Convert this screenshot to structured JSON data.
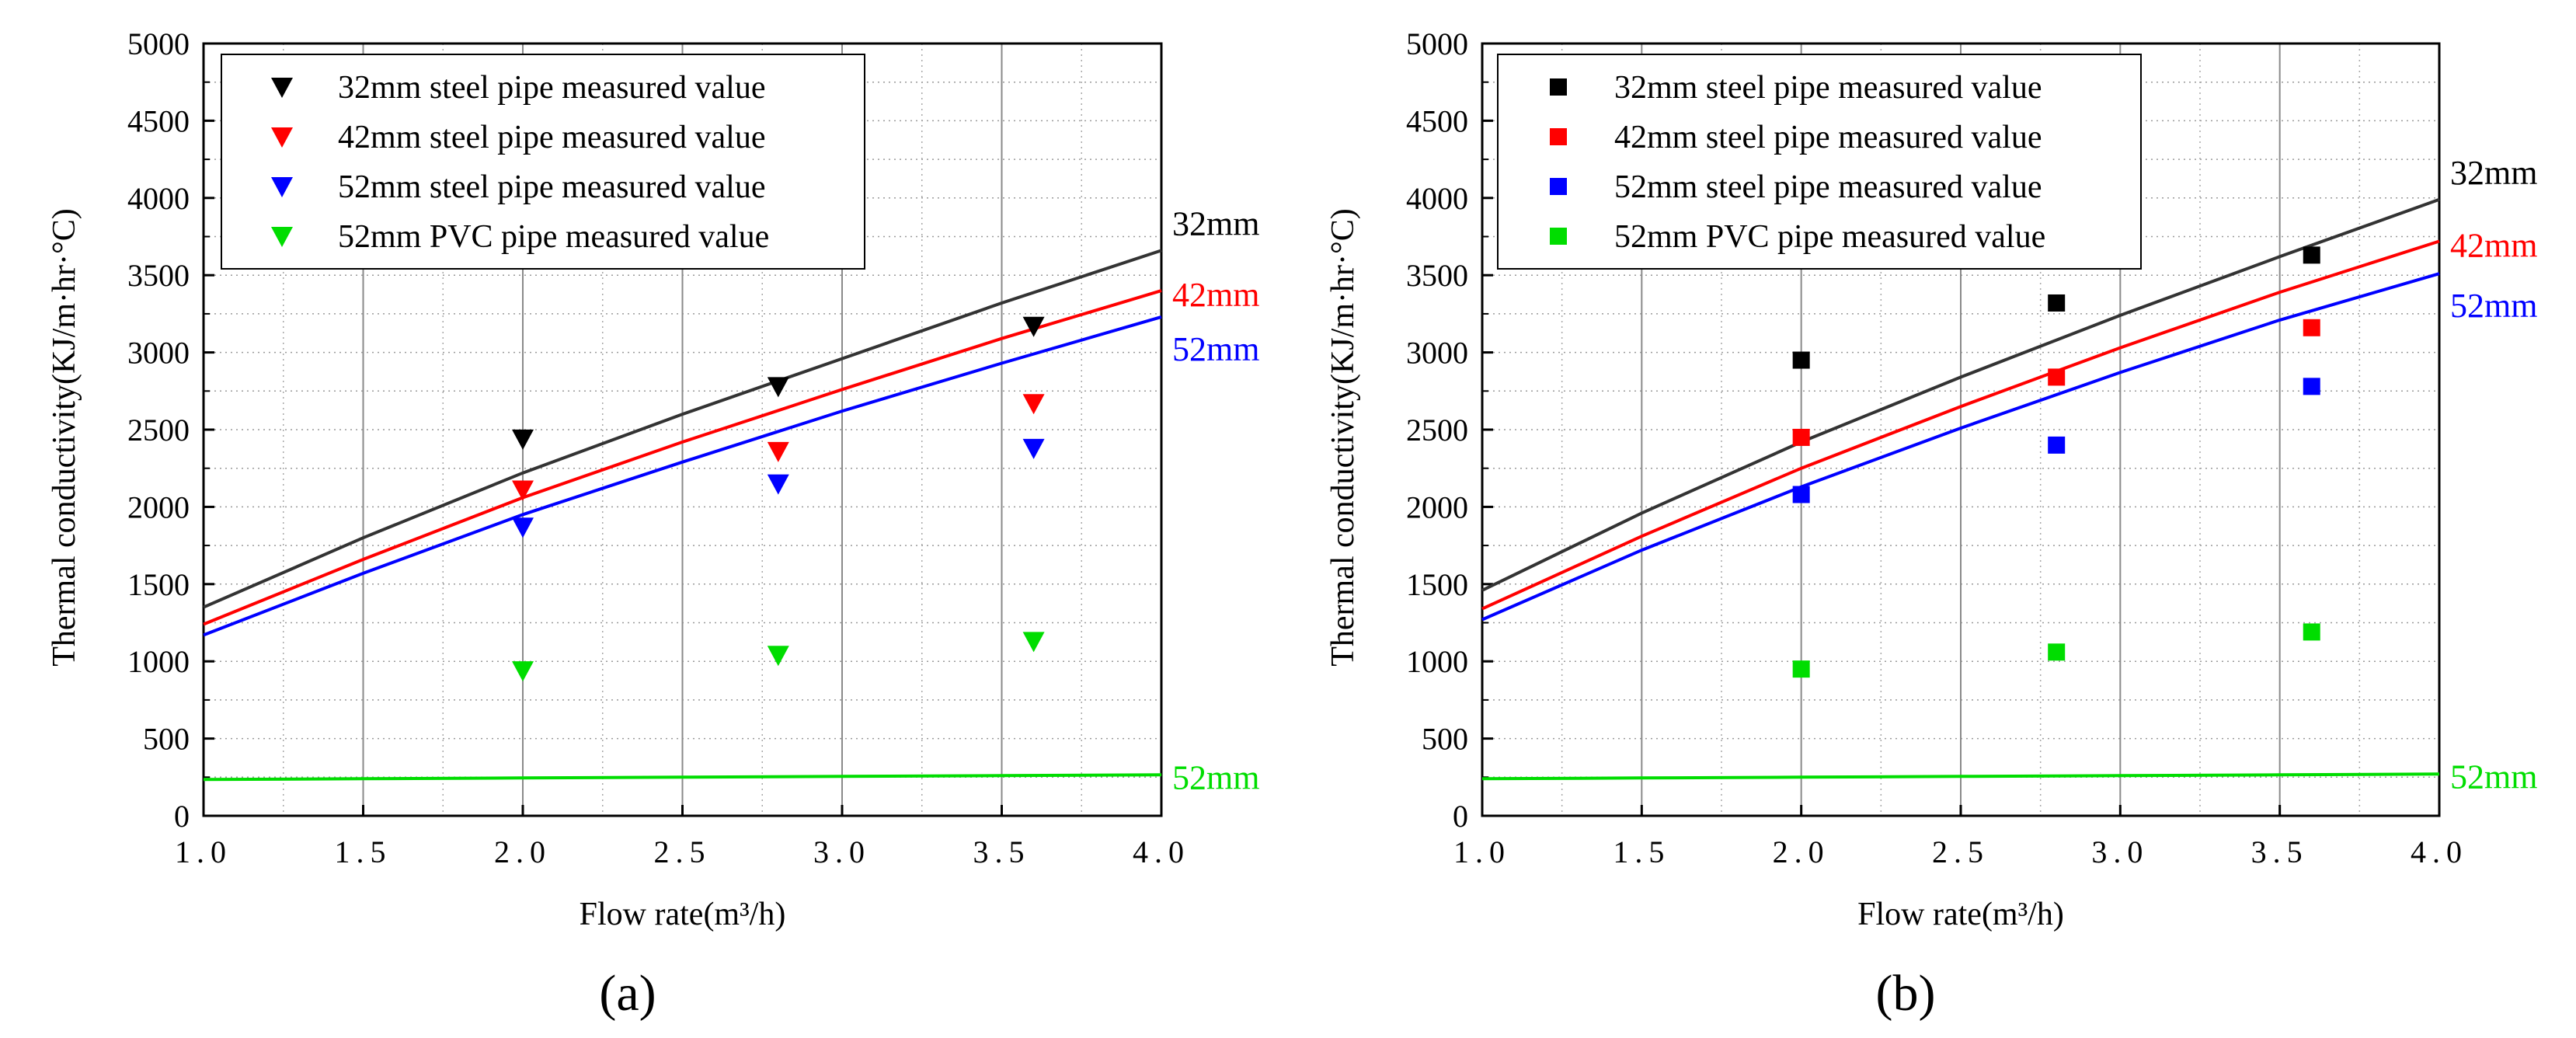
{
  "chart_data": [
    {
      "type": "line",
      "panel_label": "(a)",
      "xlabel": "Flow rate(m³/h)",
      "ylabel": "Thermal conductivity(KJ/m·hr·°C)",
      "xlim": [
        1.0,
        4.0
      ],
      "ylim": [
        0,
        5000
      ],
      "x_ticks": [
        "1.0",
        "1.5",
        "2.0",
        "2.5",
        "3.0",
        "3.5",
        "4.0"
      ],
      "y_ticks": [
        "0",
        "500",
        "1000",
        "1500",
        "2000",
        "2500",
        "3000",
        "3500",
        "4000",
        "4500",
        "5000"
      ],
      "grid": true,
      "legend_position": "top-left",
      "marker": "triangle-down",
      "curves": [
        {
          "label": "32mm",
          "color": "#333333",
          "x": [
            1.0,
            1.5,
            2.0,
            2.5,
            3.0,
            3.5,
            4.0
          ],
          "y": [
            1350,
            1800,
            2220,
            2600,
            2960,
            3320,
            3660
          ]
        },
        {
          "label": "42mm",
          "color": "#ff0000",
          "x": [
            1.0,
            1.5,
            2.0,
            2.5,
            3.0,
            3.5,
            4.0
          ],
          "y": [
            1240,
            1660,
            2060,
            2420,
            2760,
            3090,
            3400
          ]
        },
        {
          "label": "52mm",
          "color": "#0000ff",
          "x": [
            1.0,
            1.5,
            2.0,
            2.5,
            3.0,
            3.5,
            4.0
          ],
          "y": [
            1170,
            1570,
            1950,
            2290,
            2620,
            2930,
            3230
          ]
        },
        {
          "label": "52mm",
          "color": "#00dd00",
          "x": [
            1.0,
            1.5,
            2.0,
            2.5,
            3.0,
            3.5,
            4.0
          ],
          "y": [
            235,
            240,
            245,
            250,
            255,
            260,
            265
          ]
        }
      ],
      "series": [
        {
          "name": "32mm steel pipe measured value",
          "color": "#000000",
          "x": [
            2.0,
            2.8,
            3.6
          ],
          "values": [
            2440,
            2780,
            3170
          ]
        },
        {
          "name": "42mm steel pipe measured value",
          "color": "#ff0000",
          "x": [
            2.0,
            2.8,
            3.6
          ],
          "values": [
            2110,
            2360,
            2670
          ]
        },
        {
          "name": "52mm steel pipe measured value",
          "color": "#0000ff",
          "x": [
            2.0,
            2.8,
            3.6
          ],
          "values": [
            1870,
            2150,
            2380
          ]
        },
        {
          "name": "52mm PVC pipe measured value",
          "color": "#00dd00",
          "x": [
            2.0,
            2.8,
            3.6
          ],
          "values": [
            940,
            1040,
            1130
          ]
        }
      ]
    },
    {
      "type": "line",
      "panel_label": "(b)",
      "xlabel": "Flow rate(m³/h)",
      "ylabel": "Thermal conductivity(KJ/m·hr·°C)",
      "xlim": [
        1.0,
        4.0
      ],
      "ylim": [
        0,
        5000
      ],
      "x_ticks": [
        "1.0",
        "1.5",
        "2.0",
        "2.5",
        "3.0",
        "3.5",
        "4.0"
      ],
      "y_ticks": [
        "0",
        "500",
        "1000",
        "1500",
        "2000",
        "2500",
        "3000",
        "3500",
        "4000",
        "4500",
        "5000"
      ],
      "grid": true,
      "legend_position": "top-left",
      "marker": "square",
      "curves": [
        {
          "label": "32mm",
          "color": "#333333",
          "x": [
            1.0,
            1.5,
            2.0,
            2.5,
            3.0,
            3.5,
            4.0
          ],
          "y": [
            1460,
            1960,
            2420,
            2840,
            3240,
            3620,
            3990
          ]
        },
        {
          "label": "42mm",
          "color": "#ff0000",
          "x": [
            1.0,
            1.5,
            2.0,
            2.5,
            3.0,
            3.5,
            4.0
          ],
          "y": [
            1340,
            1810,
            2250,
            2650,
            3030,
            3390,
            3720
          ]
        },
        {
          "label": "52mm",
          "color": "#0000ff",
          "x": [
            1.0,
            1.5,
            2.0,
            2.5,
            3.0,
            3.5,
            4.0
          ],
          "y": [
            1270,
            1720,
            2130,
            2510,
            2870,
            3210,
            3510
          ]
        },
        {
          "label": "52mm",
          "color": "#00dd00",
          "x": [
            1.0,
            1.5,
            2.0,
            2.5,
            3.0,
            3.5,
            4.0
          ],
          "y": [
            240,
            245,
            250,
            255,
            260,
            265,
            270
          ]
        }
      ],
      "series": [
        {
          "name": "32mm steel pipe measured value",
          "color": "#000000",
          "x": [
            2.0,
            2.8,
            3.6
          ],
          "values": [
            2950,
            3320,
            3630
          ]
        },
        {
          "name": "42mm steel pipe measured value",
          "color": "#ff0000",
          "x": [
            2.0,
            2.8,
            3.6
          ],
          "values": [
            2450,
            2840,
            3160
          ]
        },
        {
          "name": "52mm steel pipe measured value",
          "color": "#0000ff",
          "x": [
            2.0,
            2.8,
            3.6
          ],
          "values": [
            2080,
            2400,
            2780
          ]
        },
        {
          "name": "52mm PVC pipe measured value",
          "color": "#00dd00",
          "x": [
            2.0,
            2.8,
            3.6
          ],
          "values": [
            950,
            1060,
            1190
          ]
        }
      ]
    }
  ]
}
